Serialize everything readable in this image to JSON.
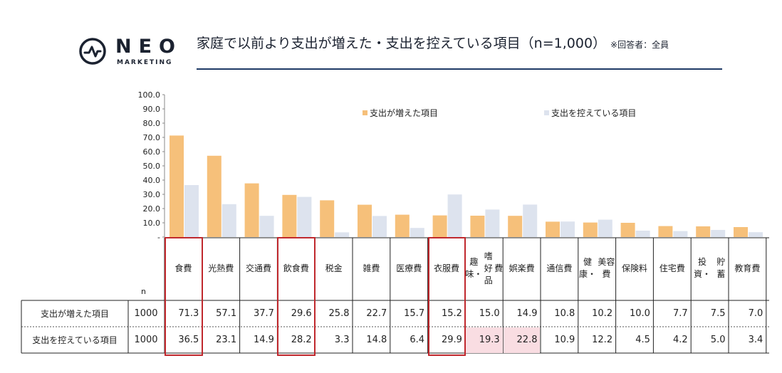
{
  "brand": {
    "name": "NEO",
    "sub": "MARKETING",
    "logo_icon": "pulse-circle-icon"
  },
  "title": {
    "main": "家庭で以前より支出が増えた・支出を控えている項目（n=1,000）",
    "note": "※回答者：全員"
  },
  "colors": {
    "increased": "#f6c07a",
    "restrained": "#dde3ee",
    "highlight_border": "#c0282d",
    "highlight_fill": "#f9dde2",
    "rule": "#1f3a66"
  },
  "chart_data": {
    "type": "bar",
    "title": "家庭で以前より支出が増えた・支出を控えている項目（n=1,000）",
    "categories": [
      "食費",
      "光熱費",
      "交通費",
      "飲食費",
      "税金",
      "雑費",
      "医療費",
      "衣服費",
      "趣味・嗜好品費",
      "娯楽費",
      "通信費",
      "健康・美容費",
      "保険料",
      "住宅費",
      "投資・貯蓄",
      "教育費"
    ],
    "category_lines": [
      [
        "食費"
      ],
      [
        "光熱費"
      ],
      [
        "交通費"
      ],
      [
        "飲食費"
      ],
      [
        "税金"
      ],
      [
        "雑費"
      ],
      [
        "医療費"
      ],
      [
        "衣服費"
      ],
      [
        "趣味・",
        "嗜好品",
        "費"
      ],
      [
        "娯楽費"
      ],
      [
        "通信費"
      ],
      [
        "健康・",
        "美容費"
      ],
      [
        "保険料"
      ],
      [
        "住宅費"
      ],
      [
        "投資・",
        "貯蓄"
      ],
      [
        "教育費"
      ]
    ],
    "series": [
      {
        "name": "支出が増えた項目",
        "n": "1000",
        "values": [
          71.3,
          57.1,
          37.7,
          29.6,
          25.8,
          22.7,
          15.7,
          15.2,
          15.0,
          14.9,
          10.8,
          10.2,
          10.0,
          7.7,
          7.5,
          7.0
        ],
        "labels": [
          "71.3",
          "57.1",
          "37.7",
          "29.6",
          "25.8",
          "22.7",
          "15.7",
          "15.2",
          "15.0",
          "14.9",
          "10.8",
          "10.2",
          "10.0",
          "7.7",
          "7.5",
          "7.0"
        ]
      },
      {
        "name": "支出を控えている項目",
        "n": "1000",
        "values": [
          36.5,
          23.1,
          14.9,
          28.2,
          3.3,
          14.8,
          6.4,
          29.9,
          19.3,
          22.8,
          10.9,
          12.2,
          4.5,
          4.2,
          5.0,
          3.4
        ],
        "labels": [
          "36.5",
          "23.1",
          "14.9",
          "28.2",
          "3.3",
          "14.8",
          "6.4",
          "29.9",
          "19.3",
          "22.8",
          "10.9",
          "12.2",
          "4.5",
          "4.2",
          "5.0",
          "3.4"
        ]
      }
    ],
    "ylim": [
      0,
      100
    ],
    "yticks": [
      "100.0",
      "90.0",
      "80.0",
      "70.0",
      "60.0",
      "50.0",
      "40.0",
      "30.0",
      "20.0",
      "10.0",
      "-"
    ],
    "legend_position": "top-right",
    "n_header": "n",
    "highlighted_categories": [
      "食費",
      "飲食費",
      "衣服費"
    ],
    "pink_cells": {
      "series": "支出を控えている項目",
      "categories": [
        "趣味・嗜好品費",
        "娯楽費"
      ]
    }
  }
}
